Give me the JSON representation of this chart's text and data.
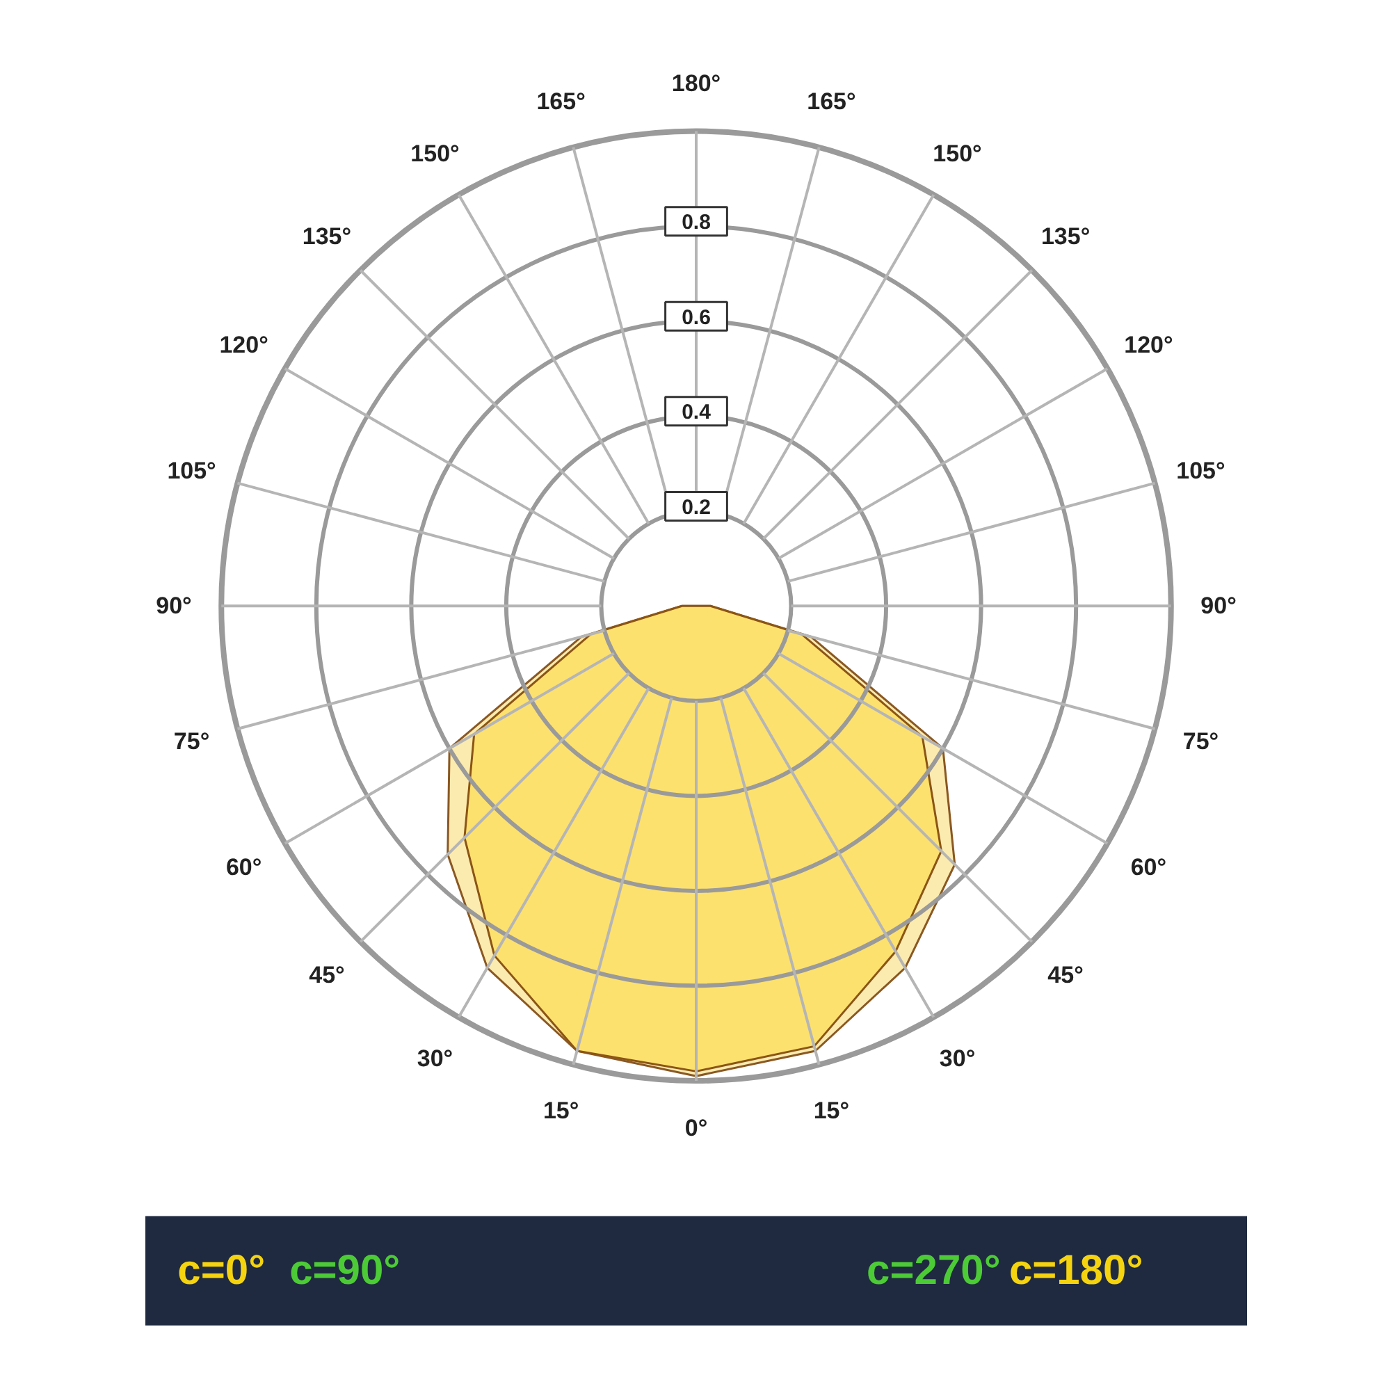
{
  "chart_data": {
    "type": "radar",
    "categories": [
      "180°",
      "165°",
      "150°",
      "135°",
      "120°",
      "105°",
      "90°",
      "75°",
      "60°",
      "45°",
      "30°",
      "15°",
      "0°",
      "15°",
      "30°",
      "45°",
      "60°",
      "75°",
      "90°",
      "105°",
      "120°",
      "135°",
      "150°",
      "165°"
    ],
    "series": [
      {
        "color": "#fbe7a1",
        "values": [
          0,
          0,
          0,
          0,
          0,
          0,
          0.03,
          0.25,
          0.6,
          0.77,
          0.88,
          0.97,
          0.99,
          0.97,
          0.88,
          0.74,
          0.6,
          0.25,
          0.03,
          0,
          0,
          0,
          0,
          0
        ]
      },
      {
        "color": "#fddf63",
        "values": [
          0,
          0,
          0,
          0,
          0,
          0,
          0.03,
          0.23,
          0.55,
          0.73,
          0.84,
          0.96,
          0.98,
          0.97,
          0.85,
          0.69,
          0.54,
          0.23,
          0.03,
          0,
          0,
          0,
          0,
          0
        ]
      }
    ],
    "ylim": [
      0,
      1
    ],
    "yticks": [
      0.2,
      0.4,
      0.6,
      0.8
    ],
    "annotations": [
      "c=0°",
      "c=90°",
      "c=270°",
      "c=180°"
    ]
  }
}
